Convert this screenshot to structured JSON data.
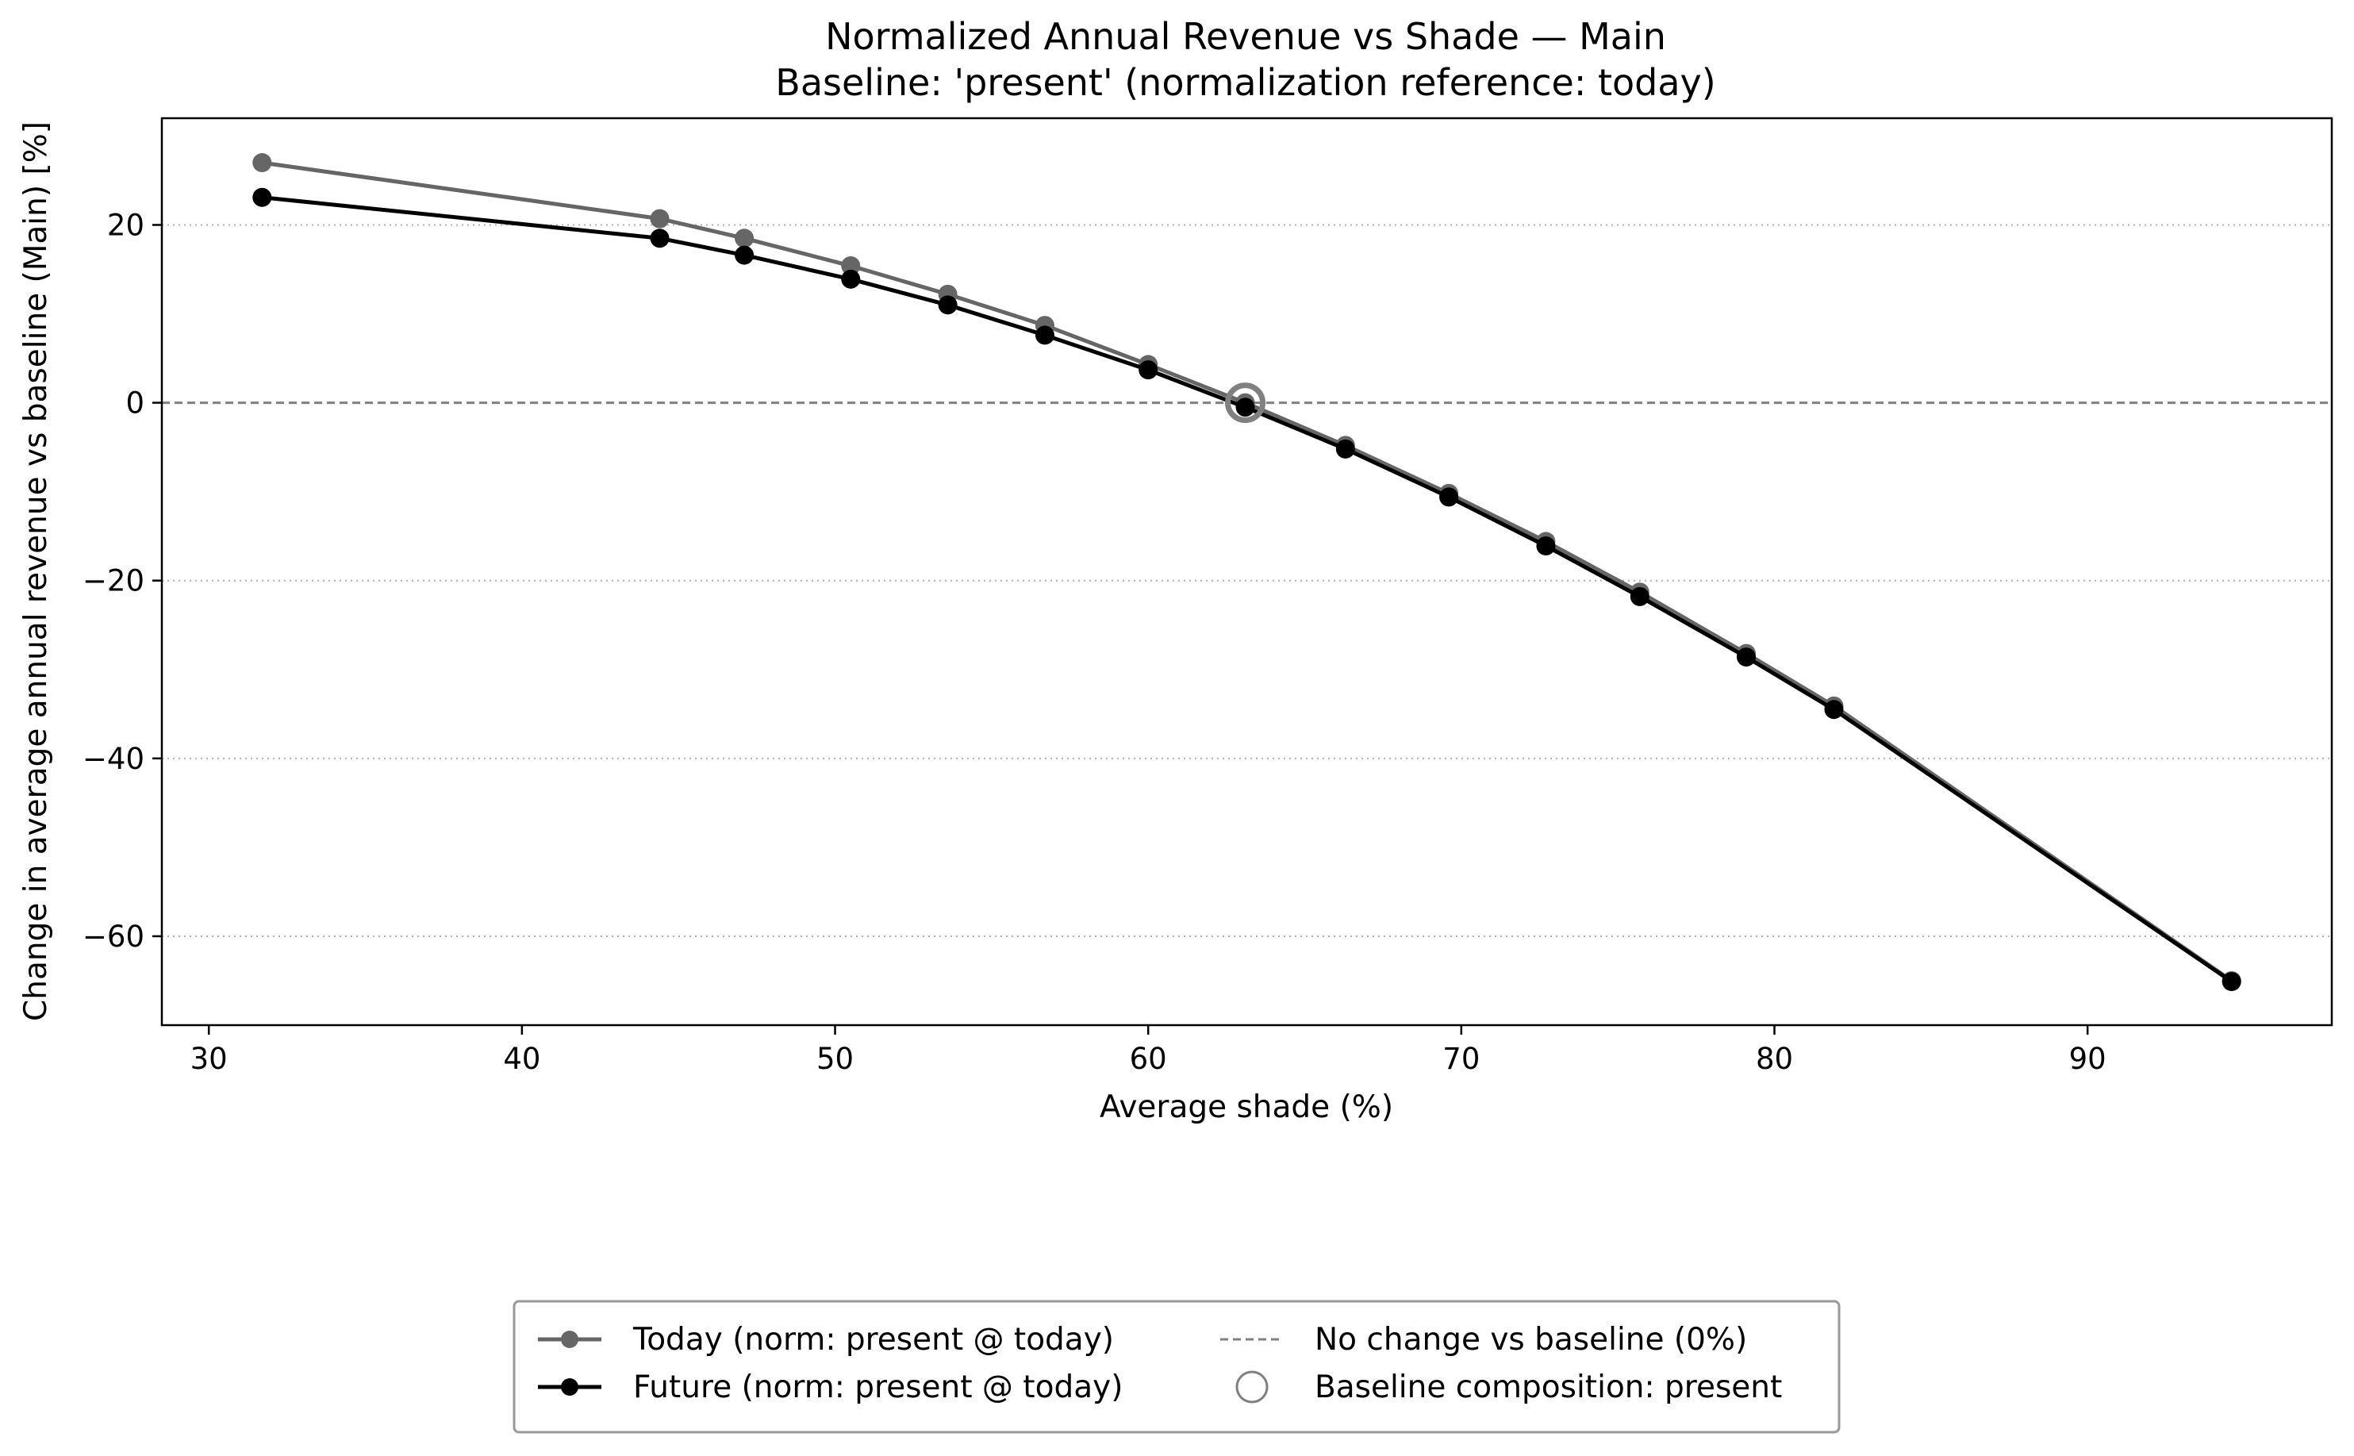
{
  "chart_data": {
    "type": "line",
    "title": "Normalized Annual Revenue vs Shade — Main",
    "subtitle": "Baseline: 'present' (normalization reference: today)",
    "xlabel": "Average shade (%)",
    "ylabel": "Change in average annual revenue vs baseline (Main) [%]",
    "xlim": [
      28.5,
      97.8
    ],
    "ylim": [
      -70,
      32
    ],
    "xticks": [
      30,
      40,
      50,
      60,
      70,
      80,
      90
    ],
    "yticks": [
      -60,
      -40,
      -20,
      0,
      20
    ],
    "ytick_labels": [
      "−60",
      "−40",
      "−20",
      "0",
      "20"
    ],
    "grid": "horizontal dotted at y ticks",
    "legend_position": "below plot, centered",
    "series": [
      {
        "name": "Today (norm: present @ today)",
        "color": "#666666",
        "x": [
          31.7,
          44.4,
          47.1,
          50.5,
          53.6,
          56.7,
          60.0,
          63.1,
          66.3,
          69.6,
          72.7,
          75.7,
          79.1,
          81.9,
          94.6
        ],
        "y": [
          27.0,
          20.7,
          18.5,
          15.4,
          12.2,
          8.7,
          4.3,
          0.0,
          -4.8,
          -10.2,
          -15.6,
          -21.3,
          -28.2,
          -34.1,
          -65.0
        ]
      },
      {
        "name": "Future (norm: present @ today)",
        "color": "#000000",
        "x": [
          31.7,
          44.4,
          47.1,
          50.5,
          53.6,
          56.7,
          60.0,
          63.1,
          66.3,
          69.6,
          72.7,
          75.7,
          79.1,
          81.9,
          94.6
        ],
        "y": [
          23.1,
          18.5,
          16.6,
          13.9,
          11.0,
          7.6,
          3.7,
          -0.5,
          -5.2,
          -10.6,
          -16.1,
          -21.8,
          -28.6,
          -34.5,
          -65.1
        ]
      }
    ],
    "reference_line": {
      "name": "No change vs baseline (0%)",
      "y": 0,
      "color": "#808080",
      "style": "dashed"
    },
    "baseline_marker": {
      "name": "Baseline composition: present",
      "x": 63.1,
      "y": 0,
      "color": "#808080"
    }
  }
}
